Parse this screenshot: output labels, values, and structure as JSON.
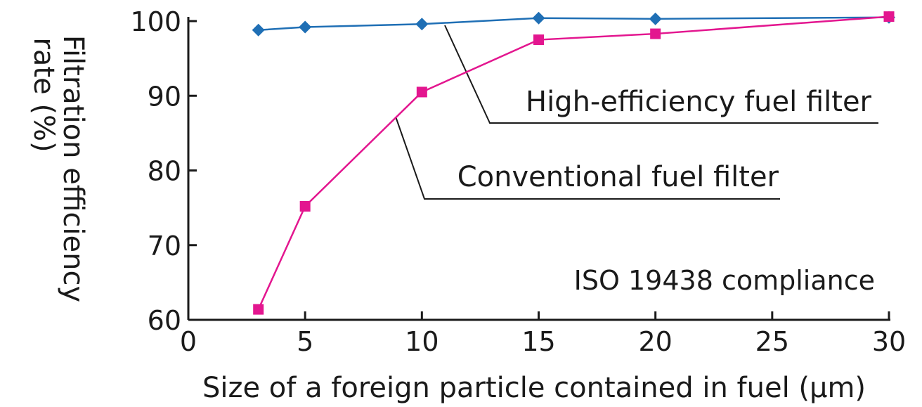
{
  "chart_data": {
    "type": "line",
    "title": "",
    "xlabel": "Size of a foreign particle contained in fuel (μm)",
    "ylabel": "Filtration efficiency rate (%)",
    "ylabel_lines": [
      "Filtration efficiency",
      "rate (%)"
    ],
    "xlim": [
      0,
      30
    ],
    "ylim": [
      60,
      100
    ],
    "x_ticks": [
      0,
      5,
      10,
      15,
      20,
      25,
      30
    ],
    "y_ticks": [
      60,
      70,
      80,
      90,
      100
    ],
    "grid": false,
    "annotation": "ISO 19438 compliance",
    "series": [
      {
        "name": "High-efficiency fuel filter",
        "color": "#1f6fb5",
        "marker": "diamond",
        "x": [
          3,
          5,
          10,
          15,
          20,
          30
        ],
        "y": [
          98.8,
          99.2,
          99.6,
          100.4,
          100.3,
          100.5
        ]
      },
      {
        "name": "Conventional fuel filter",
        "color": "#e3168f",
        "marker": "square",
        "x": [
          3,
          5,
          10,
          15,
          20,
          30
        ],
        "y": [
          61.4,
          75.2,
          90.5,
          97.5,
          98.3,
          100.6
        ]
      }
    ]
  }
}
